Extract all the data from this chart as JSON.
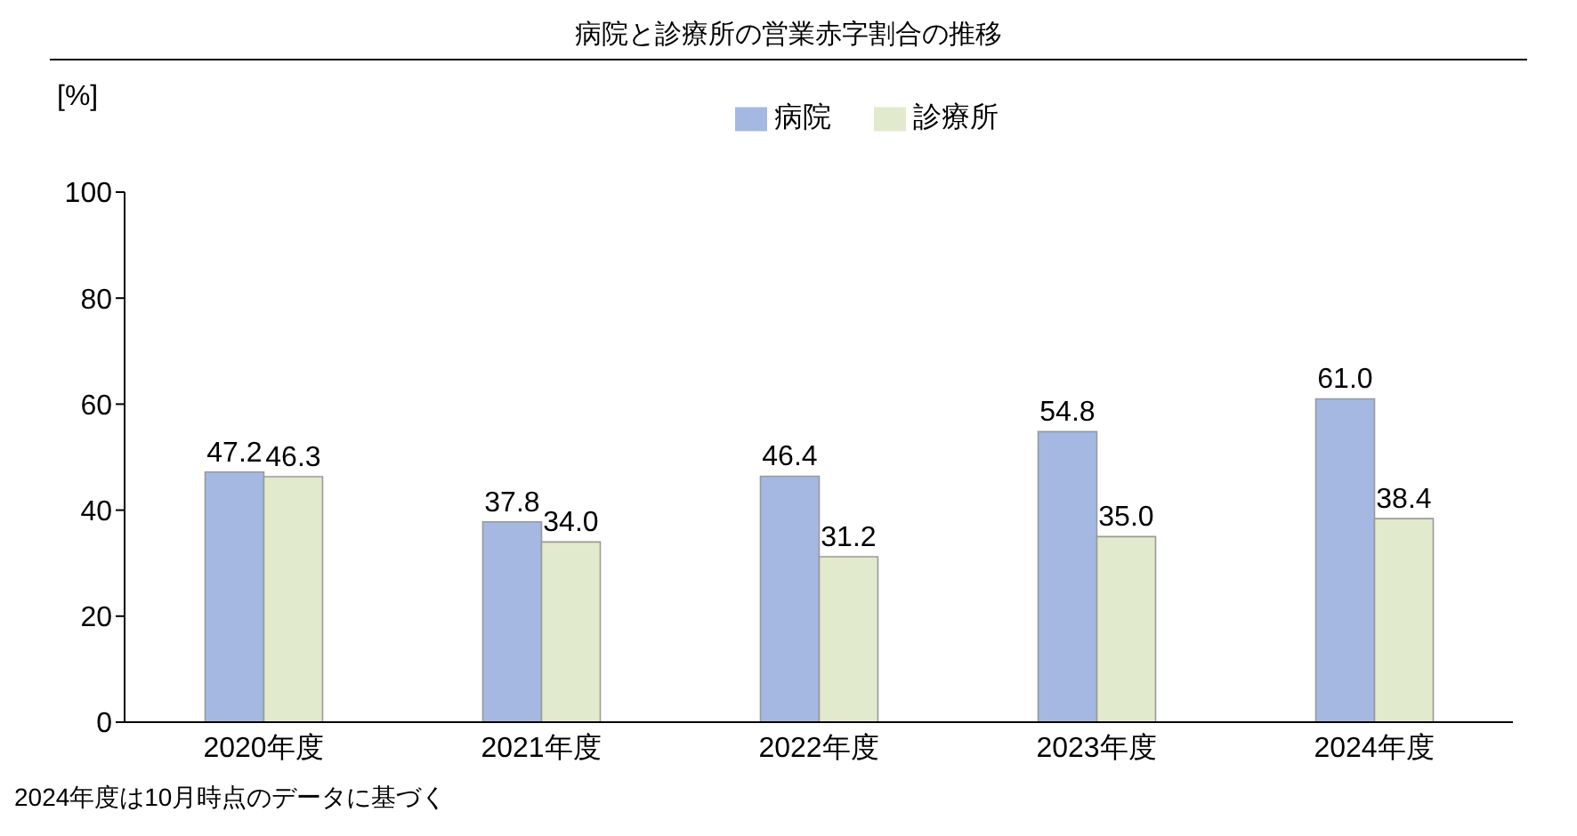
{
  "chart_data": {
    "type": "bar",
    "title": "病院と診療所の営業赤字割合の推移",
    "ylabel": "[%]",
    "categories": [
      "2020年度",
      "2021年度",
      "2022年度",
      "2023年度",
      "2024年度"
    ],
    "series": [
      {
        "name": "病院",
        "color": "#a4b8e2",
        "values": [
          47.2,
          37.8,
          46.4,
          54.8,
          61.0
        ],
        "value_labels": [
          "47.2",
          "37.8",
          "46.4",
          "54.8",
          "61.0"
        ]
      },
      {
        "name": "診療所",
        "color": "#e1eacc",
        "values": [
          46.3,
          34.0,
          31.2,
          35.0,
          38.4
        ],
        "value_labels": [
          "46.3",
          "34.0",
          "31.2",
          "35.0",
          "38.4"
        ]
      }
    ],
    "ylim": [
      0,
      100
    ],
    "yticks": [
      0,
      20,
      40,
      60,
      80,
      100
    ],
    "grid": false,
    "legend": "top",
    "annotations": [
      "2024年度は10月時点のデータに基づく"
    ]
  }
}
